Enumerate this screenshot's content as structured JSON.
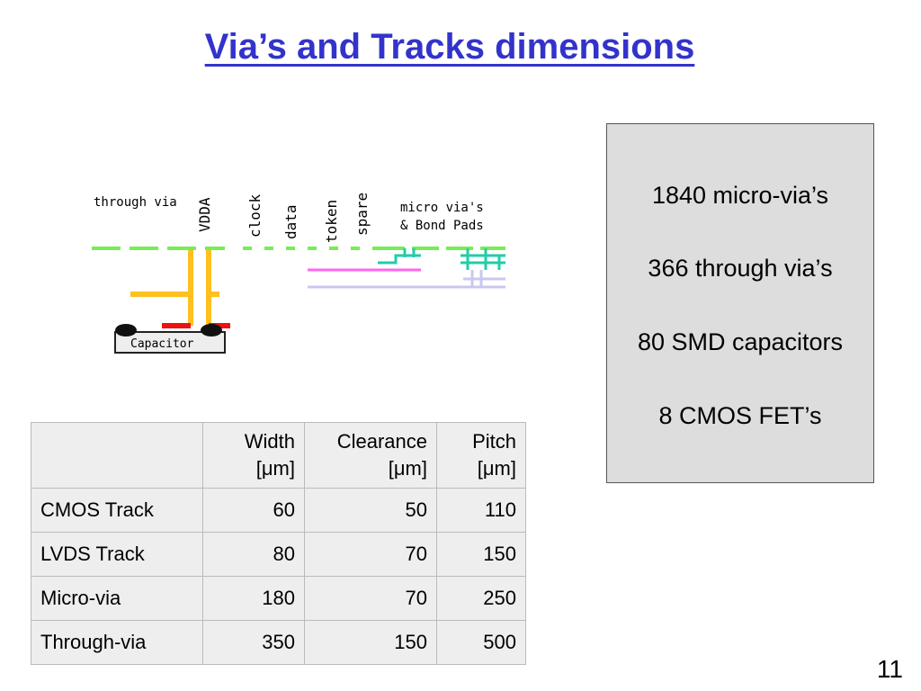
{
  "slide": {
    "title": "Via’s and Tracks dimensions",
    "page_number": "11"
  },
  "diagram": {
    "labels": {
      "through_via": "through via",
      "vdda": "VDDA",
      "clock": "clock",
      "data": "data",
      "token": "token",
      "spare": "spare",
      "micro_via_line1": "micro via's",
      "micro_via_line2": "& Bond Pads",
      "capacitor": "Capacitor"
    },
    "colors": {
      "green": "#77ee55",
      "orange": "#ffc020",
      "red": "#ee1111",
      "teal": "#22ccaa",
      "magenta": "#ff66ee",
      "lavender": "#c8c8f0"
    }
  },
  "stats": [
    "1840 micro-via’s",
    "366 through via’s",
    "80 SMD capacitors",
    "8 CMOS FET’s"
  ],
  "table": {
    "headers": [
      {
        "line1": "",
        "line2": ""
      },
      {
        "line1": "Width",
        "line2": "[μm]"
      },
      {
        "line1": "Clearance",
        "line2": "[μm]"
      },
      {
        "line1": "Pitch",
        "line2": "[μm]"
      }
    ],
    "rows": [
      {
        "name": "CMOS Track",
        "width": "60",
        "clearance": "50",
        "pitch": "110"
      },
      {
        "name": "LVDS Track",
        "width": "80",
        "clearance": "70",
        "pitch": "150"
      },
      {
        "name": "Micro-via",
        "width": "180",
        "clearance": "70",
        "pitch": "250"
      },
      {
        "name": "Through-via",
        "width": "350",
        "clearance": "150",
        "pitch": "500"
      }
    ]
  }
}
